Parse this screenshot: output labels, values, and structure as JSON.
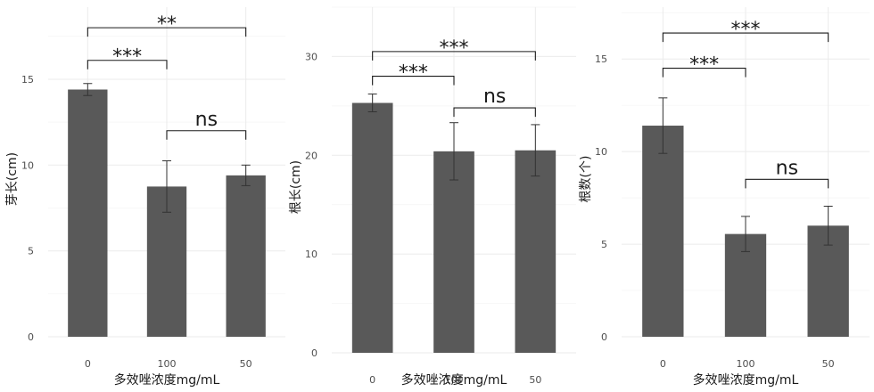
{
  "chart_data": [
    {
      "type": "bar",
      "categories": [
        "0",
        "100",
        "50"
      ],
      "values": [
        14.4,
        8.75,
        9.4
      ],
      "errors": [
        0.35,
        1.5,
        0.6
      ],
      "ylabel": "芽长(cm)",
      "xlabel": "多效唑浓度mg/mL",
      "ylim": [
        0,
        19.2
      ],
      "yticks": [
        0,
        5,
        10,
        15
      ],
      "grid": true,
      "significance": [
        {
          "from": "0",
          "to": "100",
          "label": "***",
          "y": 16.1
        },
        {
          "from": "0",
          "to": "50",
          "label": "**",
          "y": 18.0
        },
        {
          "from": "100",
          "to": "50",
          "label": "ns",
          "y": 12.0
        }
      ]
    },
    {
      "type": "bar",
      "categories": [
        "0",
        "100",
        "50"
      ],
      "values": [
        25.3,
        20.4,
        20.5
      ],
      "errors": [
        0.9,
        2.9,
        2.6
      ],
      "ylabel": "根长(cm)",
      "xlabel": "多效唑浓度mg/mL",
      "ylim": [
        0,
        35
      ],
      "yticks": [
        0,
        10,
        20,
        30
      ],
      "grid": true,
      "significance": [
        {
          "from": "0",
          "to": "100",
          "label": "***",
          "y": 28.0
        },
        {
          "from": "0",
          "to": "50",
          "label": "***",
          "y": 30.5
        },
        {
          "from": "100",
          "to": "50",
          "label": "ns",
          "y": 24.8
        }
      ]
    },
    {
      "type": "bar",
      "categories": [
        "0",
        "100",
        "50"
      ],
      "values": [
        11.4,
        5.55,
        6.0
      ],
      "errors": [
        1.5,
        0.95,
        1.05
      ],
      "ylabel": "根数(个)",
      "xlabel": "多效唑浓度mg/mL",
      "ylim": [
        0,
        17.8
      ],
      "yticks": [
        0,
        5,
        10,
        15
      ],
      "grid": true,
      "significance": [
        {
          "from": "0",
          "to": "100",
          "label": "***",
          "y": 14.5
        },
        {
          "from": "0",
          "to": "50",
          "label": "***",
          "y": 16.4
        },
        {
          "from": "100",
          "to": "50",
          "label": "ns",
          "y": 8.5
        }
      ]
    }
  ]
}
